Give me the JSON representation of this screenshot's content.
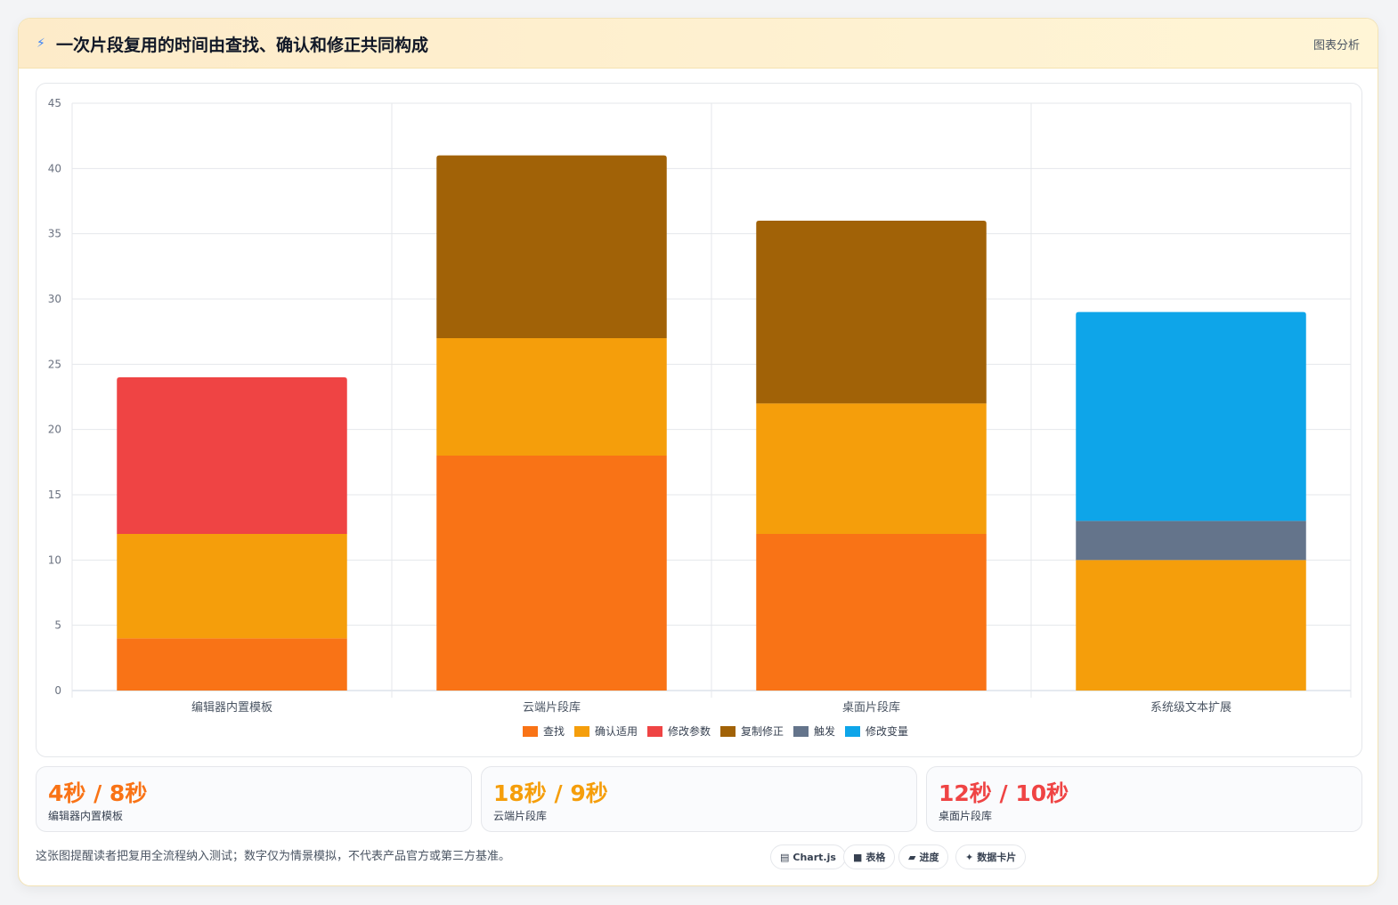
{
  "header": {
    "bolt": "⚡",
    "title": "一次片段复用的时间由查找、确认和修正共同构成",
    "tag": "图表分析"
  },
  "chart_data": {
    "type": "bar",
    "stacked": true,
    "categories": [
      "编辑器内置模板",
      "云端片段库",
      "桌面片段库",
      "系统级文本扩展"
    ],
    "ylim": [
      0,
      45
    ],
    "yticks": [
      0,
      5,
      10,
      15,
      20,
      25,
      30,
      35,
      40,
      45
    ],
    "grid": true,
    "legend": "bottom",
    "series": [
      {
        "name": "查找",
        "color": "#f97316",
        "values": [
          4,
          18,
          12,
          0
        ]
      },
      {
        "name": "确认适用",
        "color": "#f59e0b",
        "values": [
          8,
          9,
          10,
          10
        ]
      },
      {
        "name": "修改参数",
        "color": "#ef4444",
        "values": [
          12,
          0,
          0,
          0
        ]
      },
      {
        "name": "复制修正",
        "color": "#a16207",
        "values": [
          0,
          14,
          14,
          0
        ]
      },
      {
        "name": "触发",
        "color": "#64748b",
        "values": [
          0,
          0,
          0,
          3
        ]
      },
      {
        "name": "修改变量",
        "color": "#0ea5e9",
        "values": [
          0,
          0,
          0,
          16
        ]
      }
    ]
  },
  "stats": [
    {
      "value": "4秒 / 8秒",
      "label": "编辑器内置模板",
      "color": "#f97316"
    },
    {
      "value": "18秒 / 9秒",
      "label": "云端片段库",
      "color": "#f59e0b"
    },
    {
      "value": "12秒 / 10秒",
      "label": "桌面片段库",
      "color": "#ef4444"
    }
  ],
  "footnote": "这张图提醒读者把复用全流程纳入测试；数字仅为情景模拟，不代表产品官方或第三方基准。",
  "chips": [
    {
      "icon": "▤",
      "icon_name": "chart-icon",
      "label": "Chart.js"
    },
    {
      "icon": "■",
      "icon_name": "table-icon",
      "label": "表格"
    },
    {
      "icon": "▰",
      "icon_name": "progress-icon",
      "label": "进度"
    },
    {
      "icon": "✦",
      "icon_name": "sparkle-icon",
      "label": "数据卡片"
    }
  ]
}
